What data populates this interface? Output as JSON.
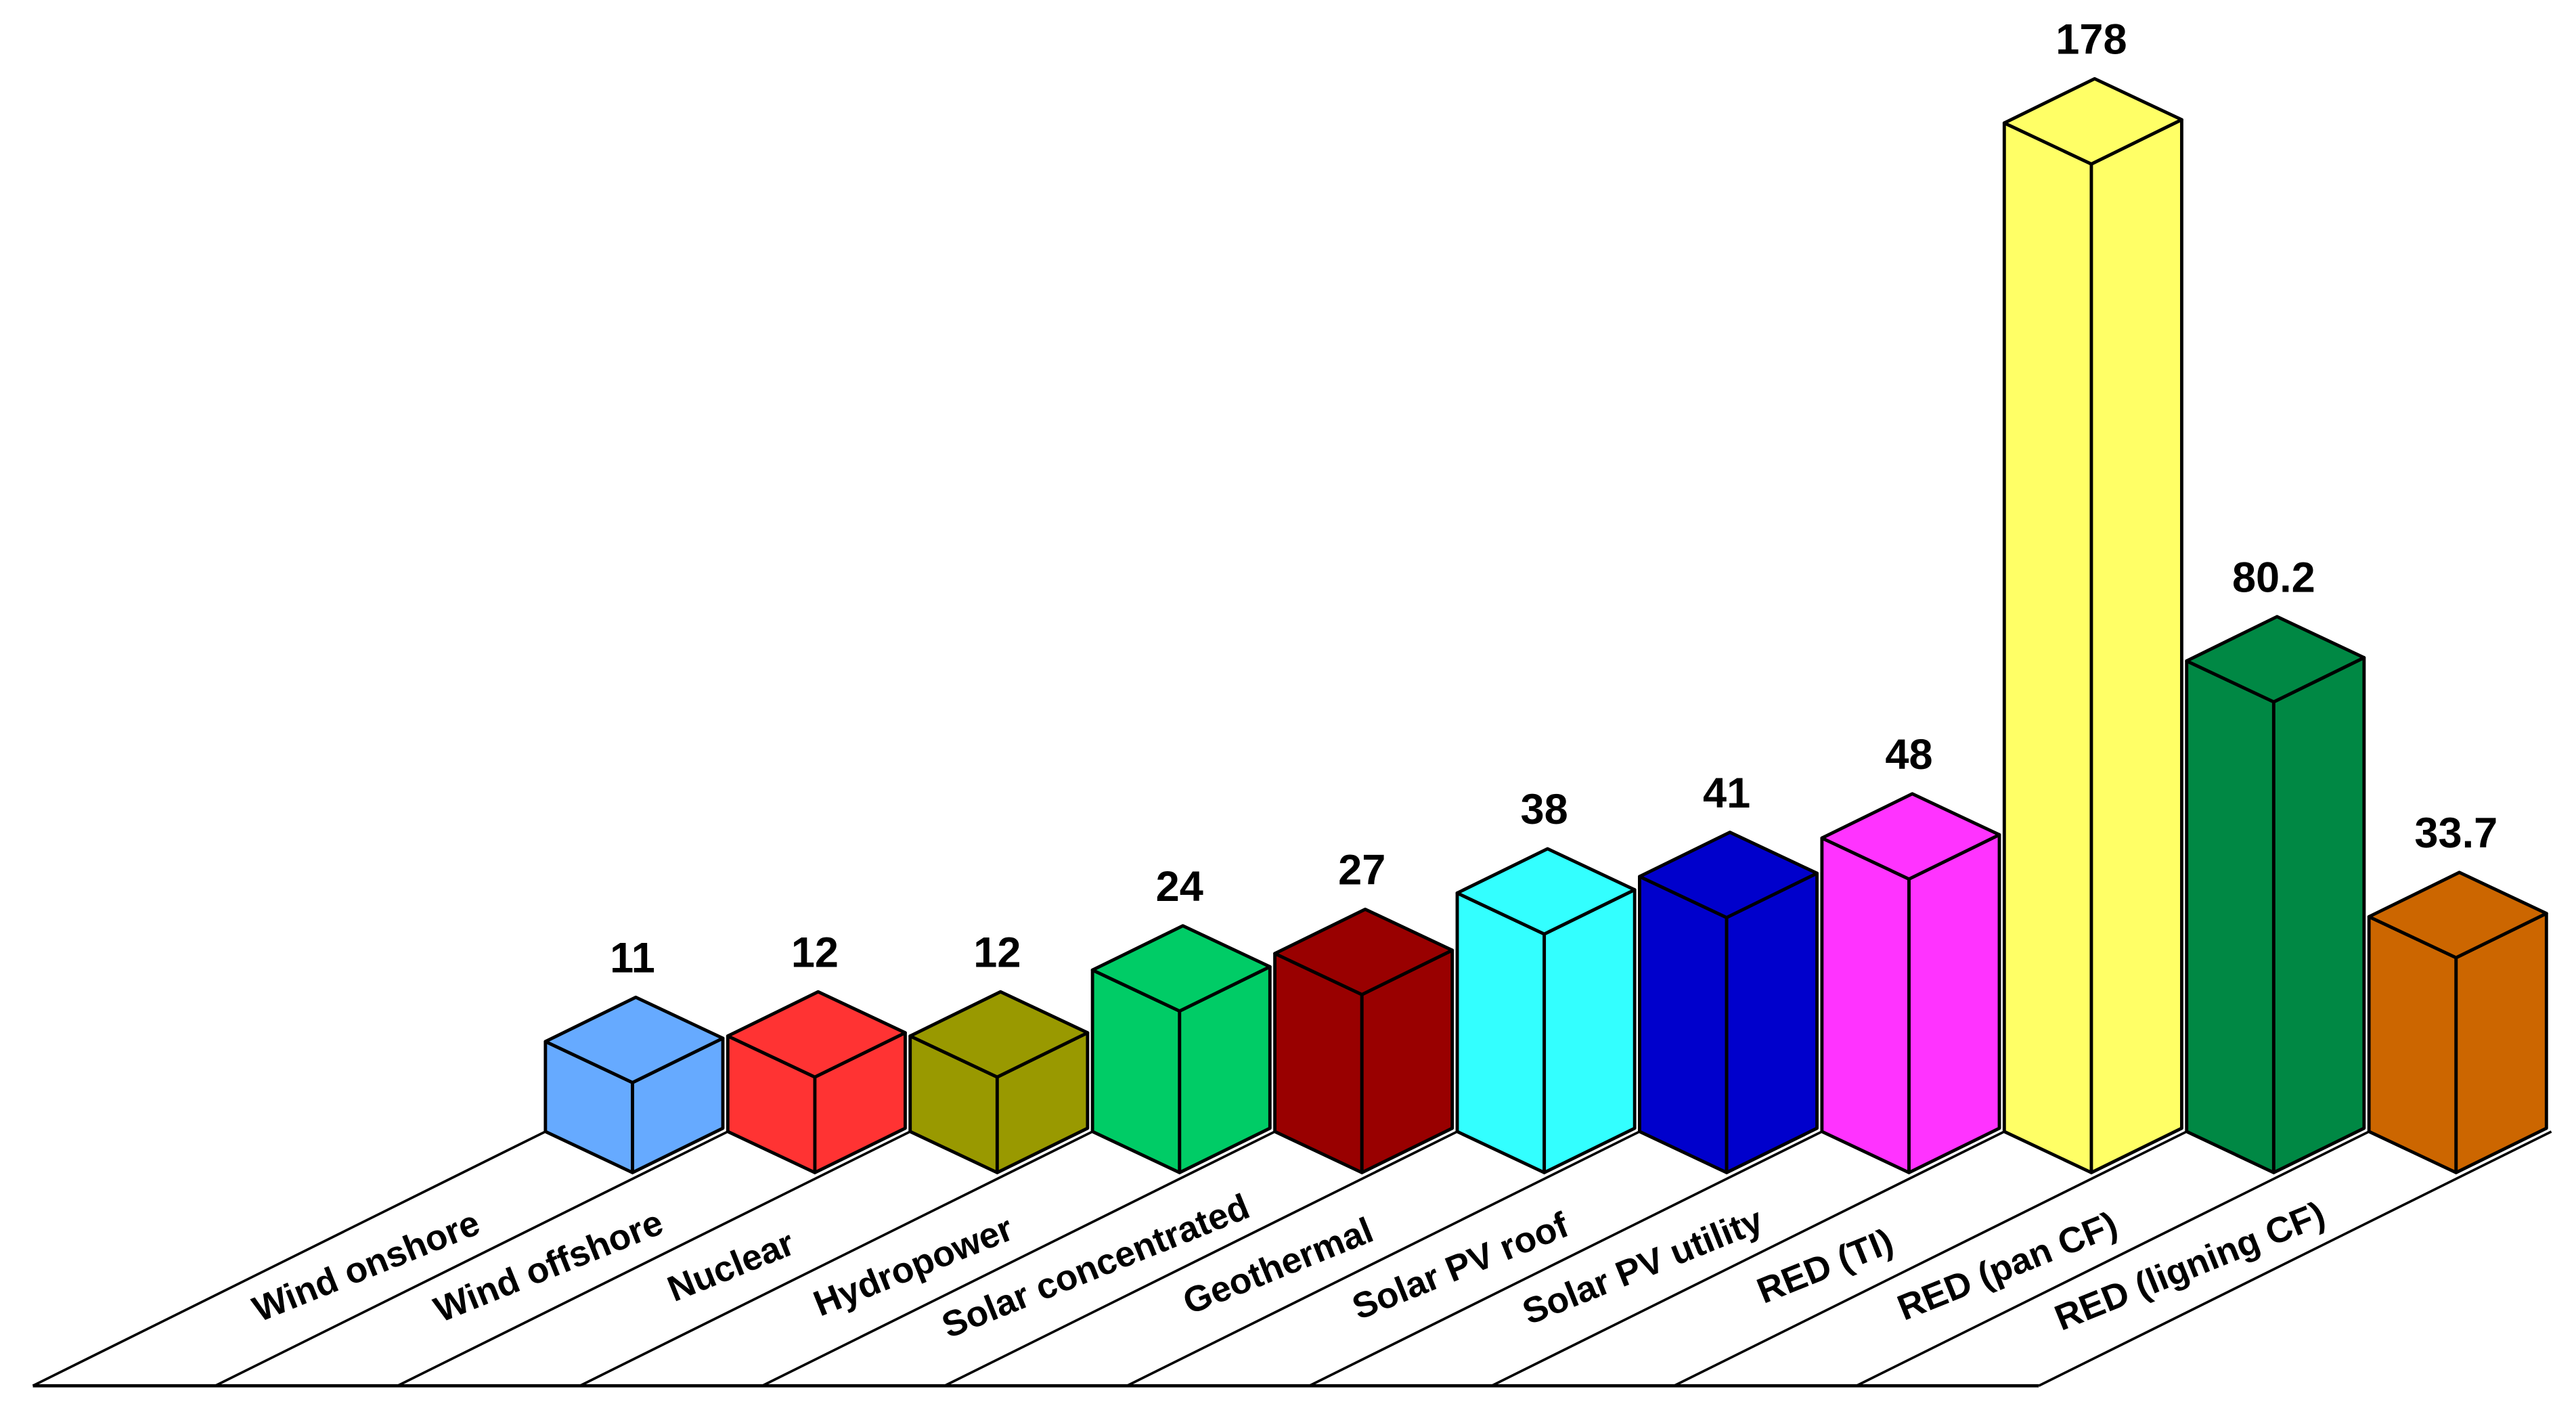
{
  "chart_data": {
    "type": "bar",
    "categories": [
      "Wind onshore",
      "Wind offshore",
      "Nuclear",
      "Hydropower",
      "Solar concentrated",
      "Geothermal",
      "Solar PV roof",
      "Solar PV utility",
      "RED (TI)",
      "RED (pan CF)",
      "RED (ligning CF)"
    ],
    "values": [
      11,
      12,
      12,
      24,
      27,
      38,
      41,
      48,
      178,
      80.2,
      33.7
    ],
    "colors": [
      "#66aaff",
      "#ff3333",
      "#999900",
      "#00cc66",
      "#990000",
      "#33ffff",
      "#0000cc",
      "#ff33ff",
      "#ffff66",
      "#008844",
      "#cc6600"
    ]
  }
}
